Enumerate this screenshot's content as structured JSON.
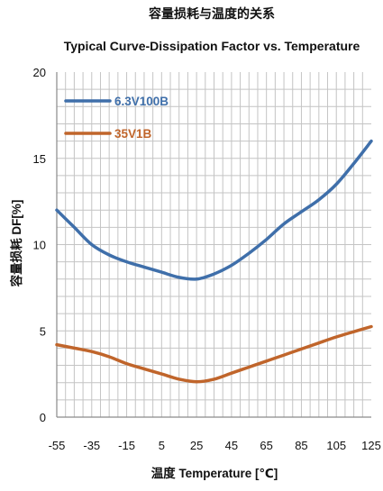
{
  "chart_data": {
    "type": "line",
    "title": "容量损耗与温度的关系",
    "subtitle": "Typical Curve-Dissipation Factor vs. Temperature",
    "xlabel": "温度 Temperature [℃]",
    "ylabel": "容量损耗  DF[%]",
    "xlim": [
      -55,
      125
    ],
    "ylim": [
      0,
      20
    ],
    "x_ticks": [
      -55,
      -35,
      -15,
      5,
      25,
      45,
      65,
      85,
      105,
      125
    ],
    "y_ticks": [
      0,
      5,
      10,
      15,
      20
    ],
    "grid": true,
    "legend_position": "top-left",
    "series": [
      {
        "name": "6.3V100B",
        "color": "#3f6faa",
        "x": [
          -55,
          -45,
          -35,
          -25,
          -15,
          -5,
          5,
          15,
          25,
          35,
          45,
          55,
          65,
          75,
          85,
          95,
          105,
          115,
          125
        ],
        "values": [
          12.0,
          11.0,
          10.0,
          9.4,
          9.0,
          8.7,
          8.4,
          8.1,
          8.0,
          8.3,
          8.8,
          9.5,
          10.3,
          11.2,
          11.9,
          12.6,
          13.5,
          14.7,
          16.0
        ]
      },
      {
        "name": "35V1B",
        "color": "#c0652b",
        "x": [
          -55,
          -45,
          -35,
          -25,
          -15,
          -5,
          5,
          15,
          25,
          35,
          45,
          55,
          65,
          75,
          85,
          95,
          105,
          115,
          125
        ],
        "values": [
          4.2,
          4.0,
          3.8,
          3.5,
          3.1,
          2.8,
          2.5,
          2.2,
          2.05,
          2.2,
          2.55,
          2.9,
          3.25,
          3.6,
          3.95,
          4.3,
          4.65,
          4.95,
          5.25
        ]
      }
    ]
  }
}
